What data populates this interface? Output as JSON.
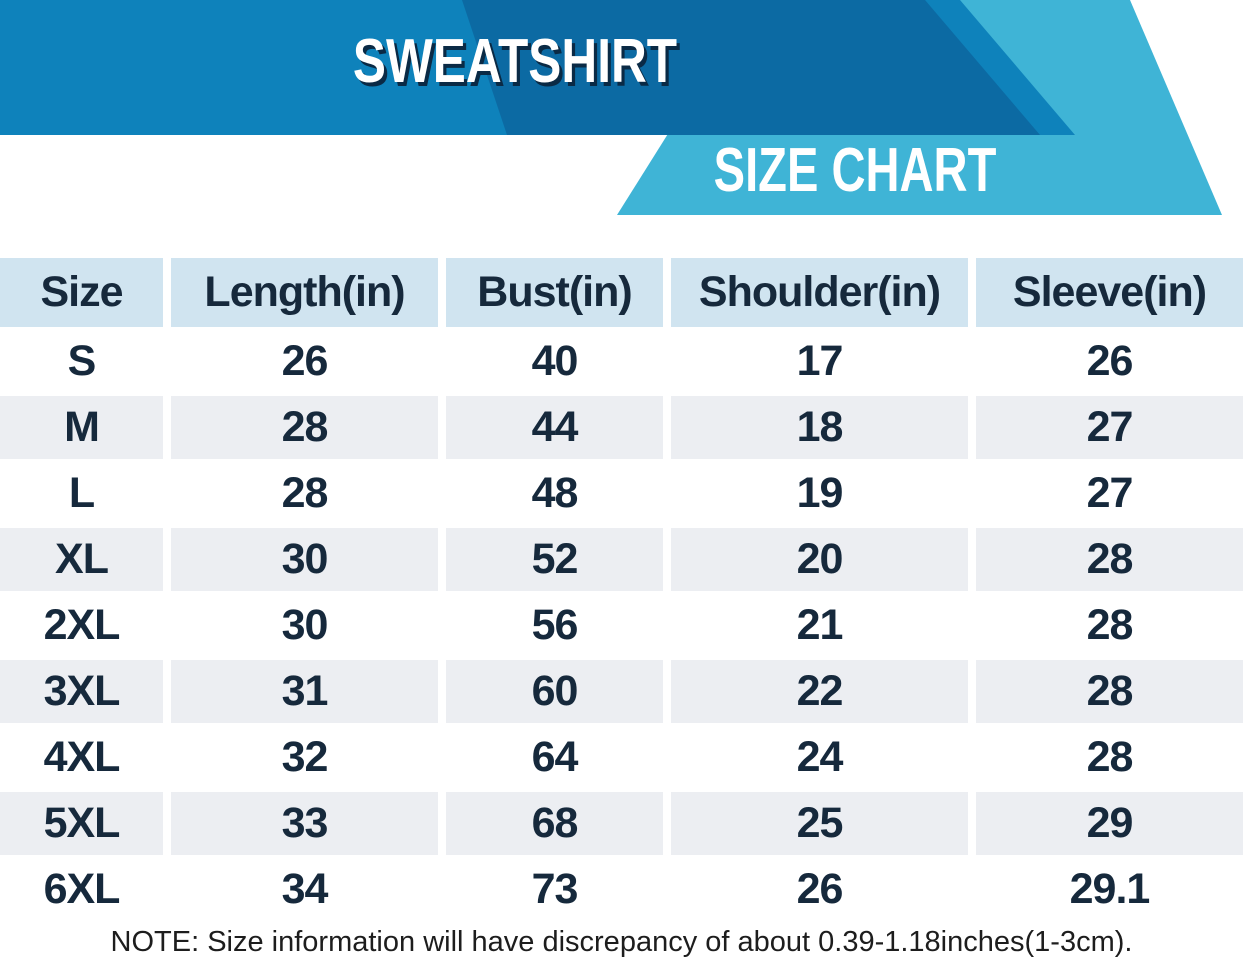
{
  "banner": {
    "title": "SWEATSHIRT",
    "subtitle": "SIZE CHART"
  },
  "colors": {
    "banner_blue": "#0E82BB",
    "banner_dark_blue": "#0C6AA3",
    "banner_cyan": "#3FB4D6",
    "title_shadow": "#0A2A45",
    "header_cell_bg": "#D0E4F0",
    "table_text": "#16293C",
    "alt_row_bg": "#ECEEF2",
    "note_text": "#1D1D1D"
  },
  "table": {
    "columns": [
      "Size",
      "Length(in)",
      "Bust(in)",
      "Shoulder(in)",
      "Sleeve(in)"
    ],
    "rows": [
      [
        "S",
        "26",
        "40",
        "17",
        "26"
      ],
      [
        "M",
        "28",
        "44",
        "18",
        "27"
      ],
      [
        "L",
        "28",
        "48",
        "19",
        "27"
      ],
      [
        "XL",
        "30",
        "52",
        "20",
        "28"
      ],
      [
        "2XL",
        "30",
        "56",
        "21",
        "28"
      ],
      [
        "3XL",
        "31",
        "60",
        "22",
        "28"
      ],
      [
        "4XL",
        "32",
        "64",
        "24",
        "28"
      ],
      [
        "5XL",
        "33",
        "68",
        "25",
        "29"
      ],
      [
        "6XL",
        "34",
        "73",
        "26",
        "29.1"
      ]
    ]
  },
  "note": "NOTE: Size information will have discrepancy of about 0.39-1.18inches(1-3cm).",
  "chart_data": {
    "type": "table",
    "title": "SWEATSHIRT SIZE CHART",
    "columns": [
      "Size",
      "Length(in)",
      "Bust(in)",
      "Shoulder(in)",
      "Sleeve(in)"
    ],
    "rows": [
      [
        "S",
        26,
        40,
        17,
        26
      ],
      [
        "M",
        28,
        44,
        18,
        27
      ],
      [
        "L",
        28,
        48,
        19,
        27
      ],
      [
        "XL",
        30,
        52,
        20,
        28
      ],
      [
        "2XL",
        30,
        56,
        21,
        28
      ],
      [
        "3XL",
        31,
        60,
        22,
        28
      ],
      [
        "4XL",
        32,
        64,
        24,
        28
      ],
      [
        "5XL",
        33,
        68,
        25,
        29
      ],
      [
        "6XL",
        34,
        73,
        26,
        29.1
      ]
    ],
    "footnote": "NOTE: Size information will have discrepancy of about 0.39-1.18inches(1-3cm)."
  }
}
